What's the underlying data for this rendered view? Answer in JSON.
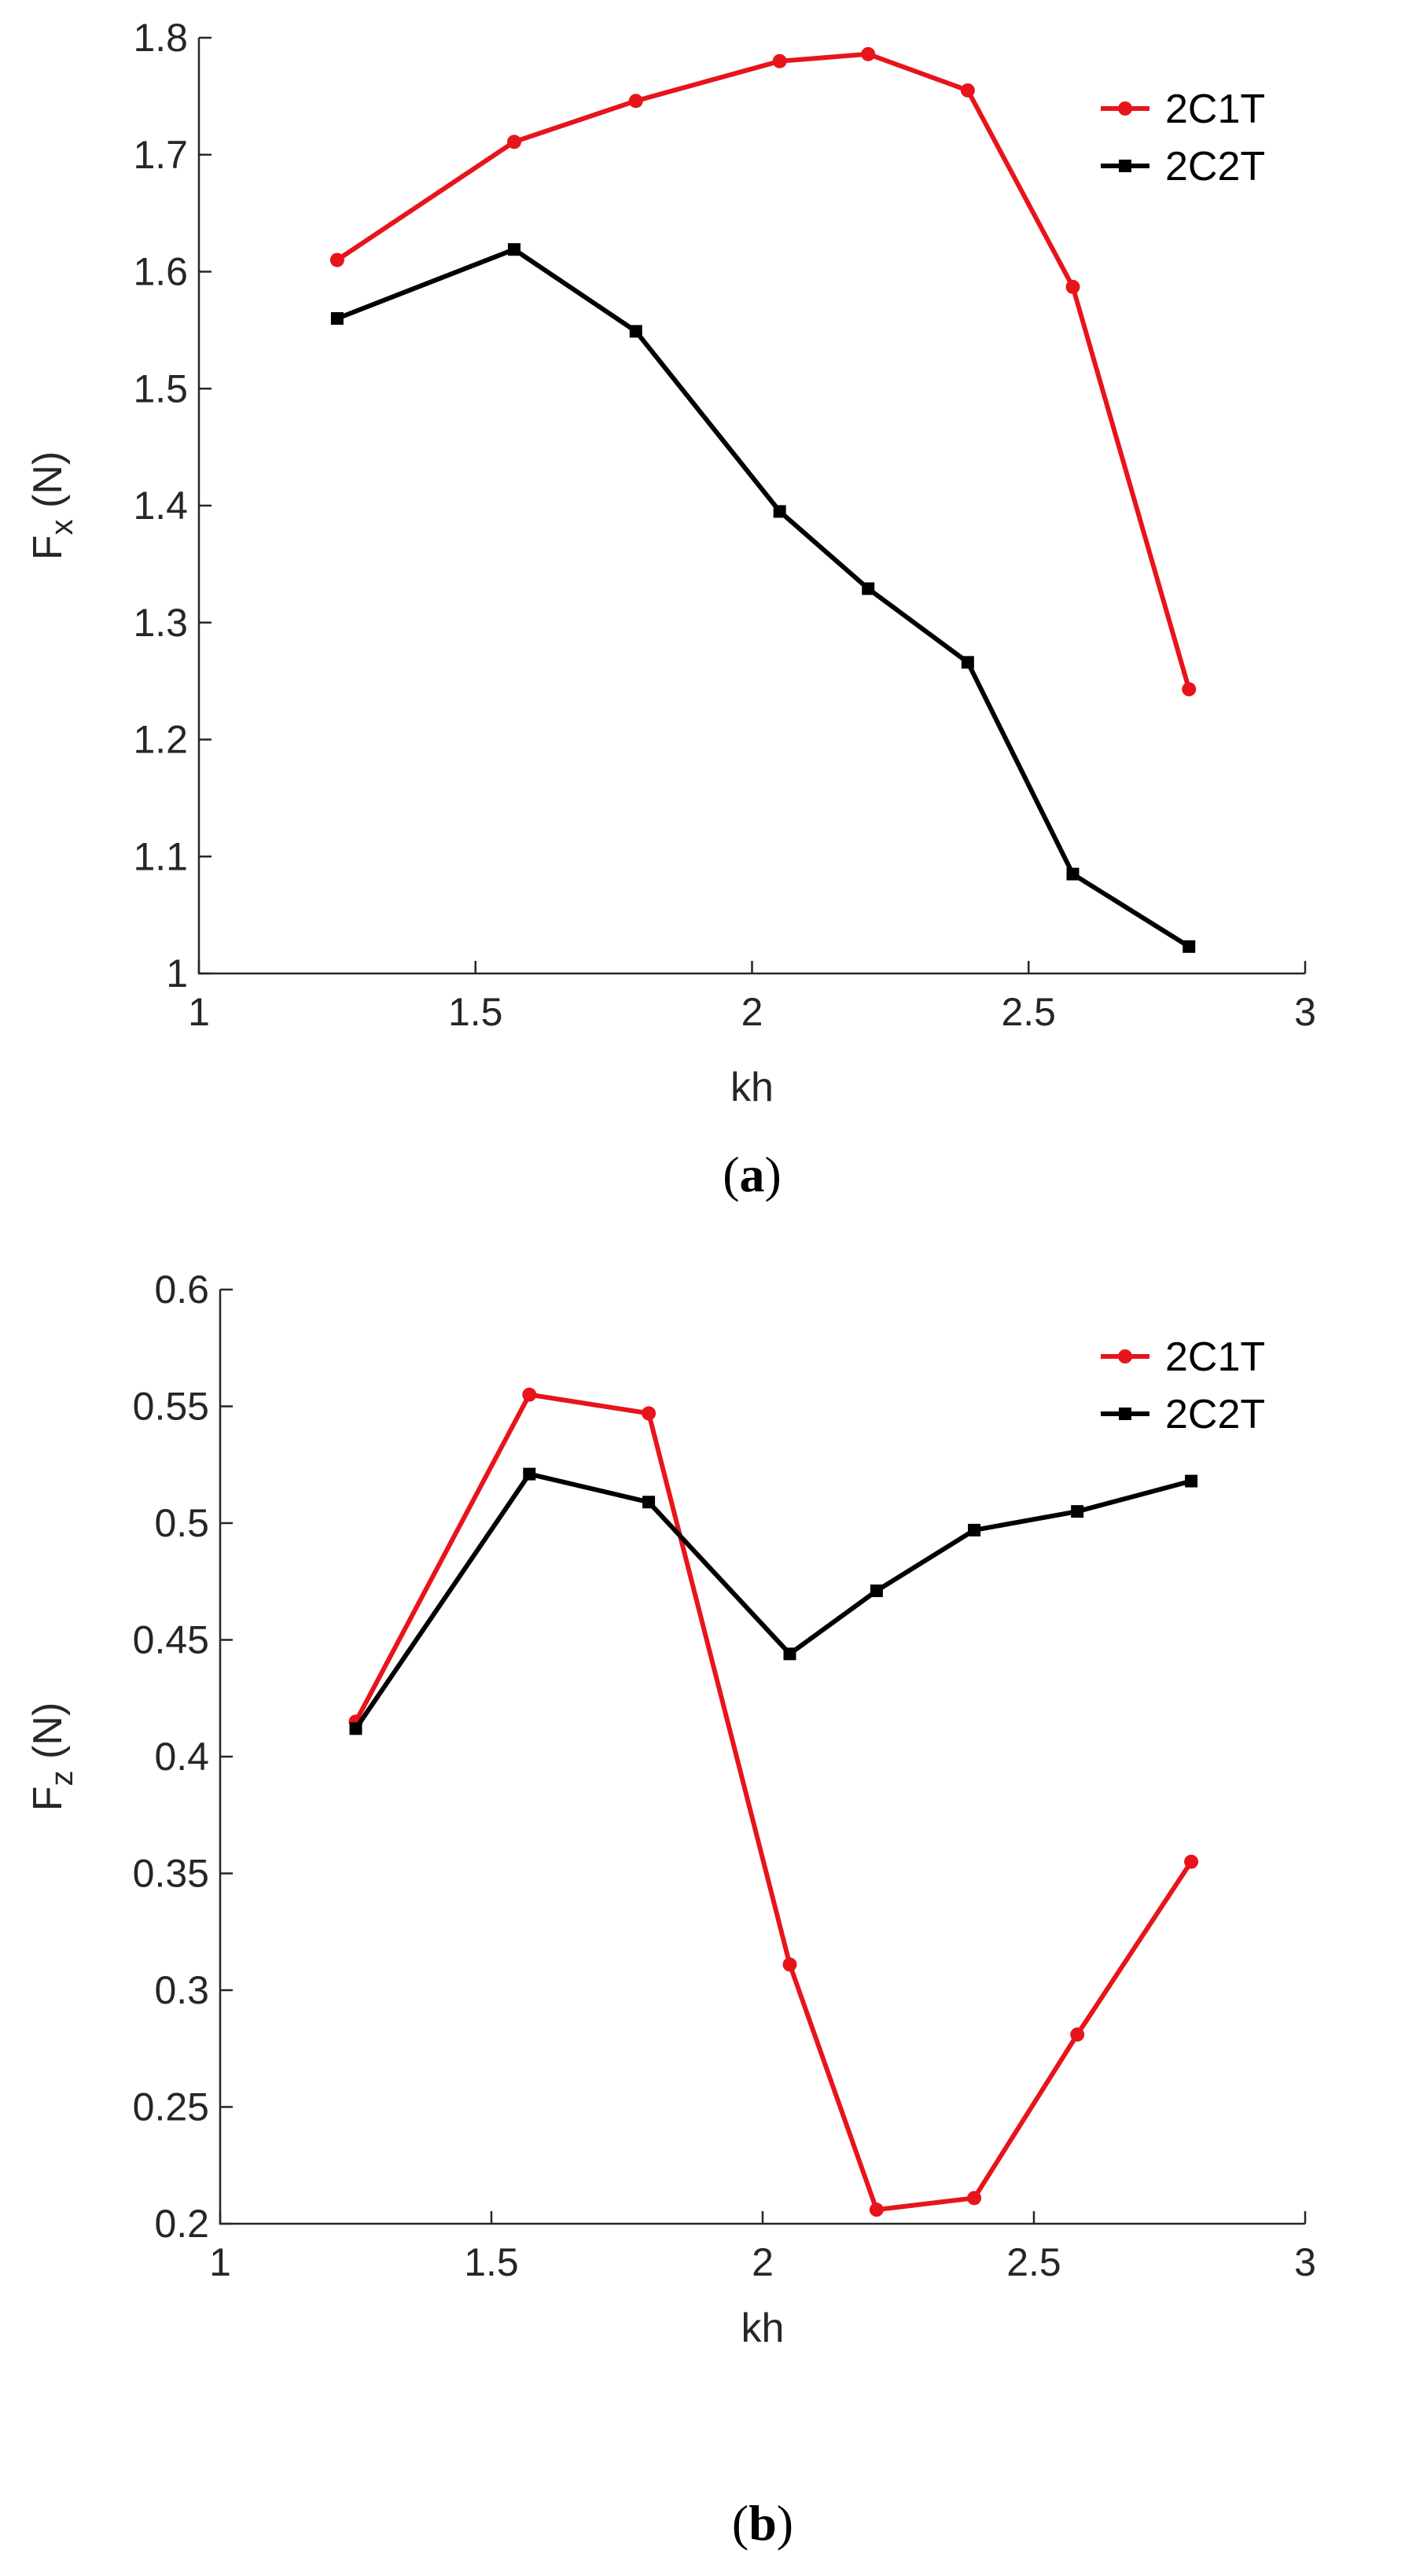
{
  "chart_data": [
    {
      "type": "line",
      "caption_open": "(",
      "caption_letter": "a",
      "caption_close": ")",
      "xlabel": "kh",
      "ylabel_main": "F",
      "ylabel_sub": "x",
      "ylabel_unit": " (N)",
      "xlim": [
        1,
        3
      ],
      "ylim": [
        1,
        1.8
      ],
      "xticks": [
        1,
        1.5,
        2,
        2.5,
        3
      ],
      "xtick_labels": [
        "1",
        "1.5",
        "2",
        "2.5",
        "3"
      ],
      "yticks": [
        1,
        1.1,
        1.2,
        1.3,
        1.4,
        1.5,
        1.6,
        1.7,
        1.8
      ],
      "ytick_labels": [
        "1",
        "1.1",
        "1.2",
        "1.3",
        "1.4",
        "1.5",
        "1.6",
        "1.7",
        "1.8"
      ],
      "legend_position": "top-right",
      "series": [
        {
          "name": "2C1T",
          "color": "#e8141b",
          "marker": "circle",
          "x": [
            1.25,
            1.57,
            1.79,
            2.05,
            2.21,
            2.39,
            2.58,
            2.79
          ],
          "values": [
            1.61,
            1.711,
            1.746,
            1.78,
            1.786,
            1.755,
            1.587,
            1.243
          ]
        },
        {
          "name": "2C2T",
          "color": "#000000",
          "marker": "square",
          "x": [
            1.25,
            1.57,
            1.79,
            2.05,
            2.21,
            2.39,
            2.58,
            2.79
          ],
          "values": [
            1.56,
            1.619,
            1.549,
            1.395,
            1.329,
            1.266,
            1.085,
            1.023
          ]
        }
      ]
    },
    {
      "type": "line",
      "caption_open": "(",
      "caption_letter": "b",
      "caption_close": ")",
      "xlabel": "kh",
      "ylabel_main": "F",
      "ylabel_sub": "z",
      "ylabel_unit": " (N)",
      "xlim": [
        1,
        3
      ],
      "ylim": [
        0.2,
        0.6
      ],
      "xticks": [
        1,
        1.5,
        2,
        2.5,
        3
      ],
      "xtick_labels": [
        "1",
        "1.5",
        "2",
        "2.5",
        "3"
      ],
      "yticks": [
        0.2,
        0.25,
        0.3,
        0.35,
        0.4,
        0.45,
        0.5,
        0.55,
        0.6
      ],
      "ytick_labels": [
        "0.2",
        "0.25",
        "0.3",
        "0.35",
        "0.4",
        "0.45",
        "0.5",
        "0.55",
        "0.6"
      ],
      "legend_position": "top-right",
      "series": [
        {
          "name": "2C1T",
          "color": "#e8141b",
          "marker": "circle",
          "x": [
            1.25,
            1.57,
            1.79,
            2.05,
            2.21,
            2.39,
            2.58,
            2.79
          ],
          "values": [
            0.415,
            0.555,
            0.547,
            0.311,
            0.206,
            0.211,
            0.281,
            0.355
          ]
        },
        {
          "name": "2C2T",
          "color": "#000000",
          "marker": "square",
          "x": [
            1.25,
            1.57,
            1.79,
            2.05,
            2.21,
            2.39,
            2.58,
            2.79
          ],
          "values": [
            0.412,
            0.521,
            0.509,
            0.444,
            0.471,
            0.497,
            0.505,
            0.518
          ]
        }
      ]
    }
  ]
}
